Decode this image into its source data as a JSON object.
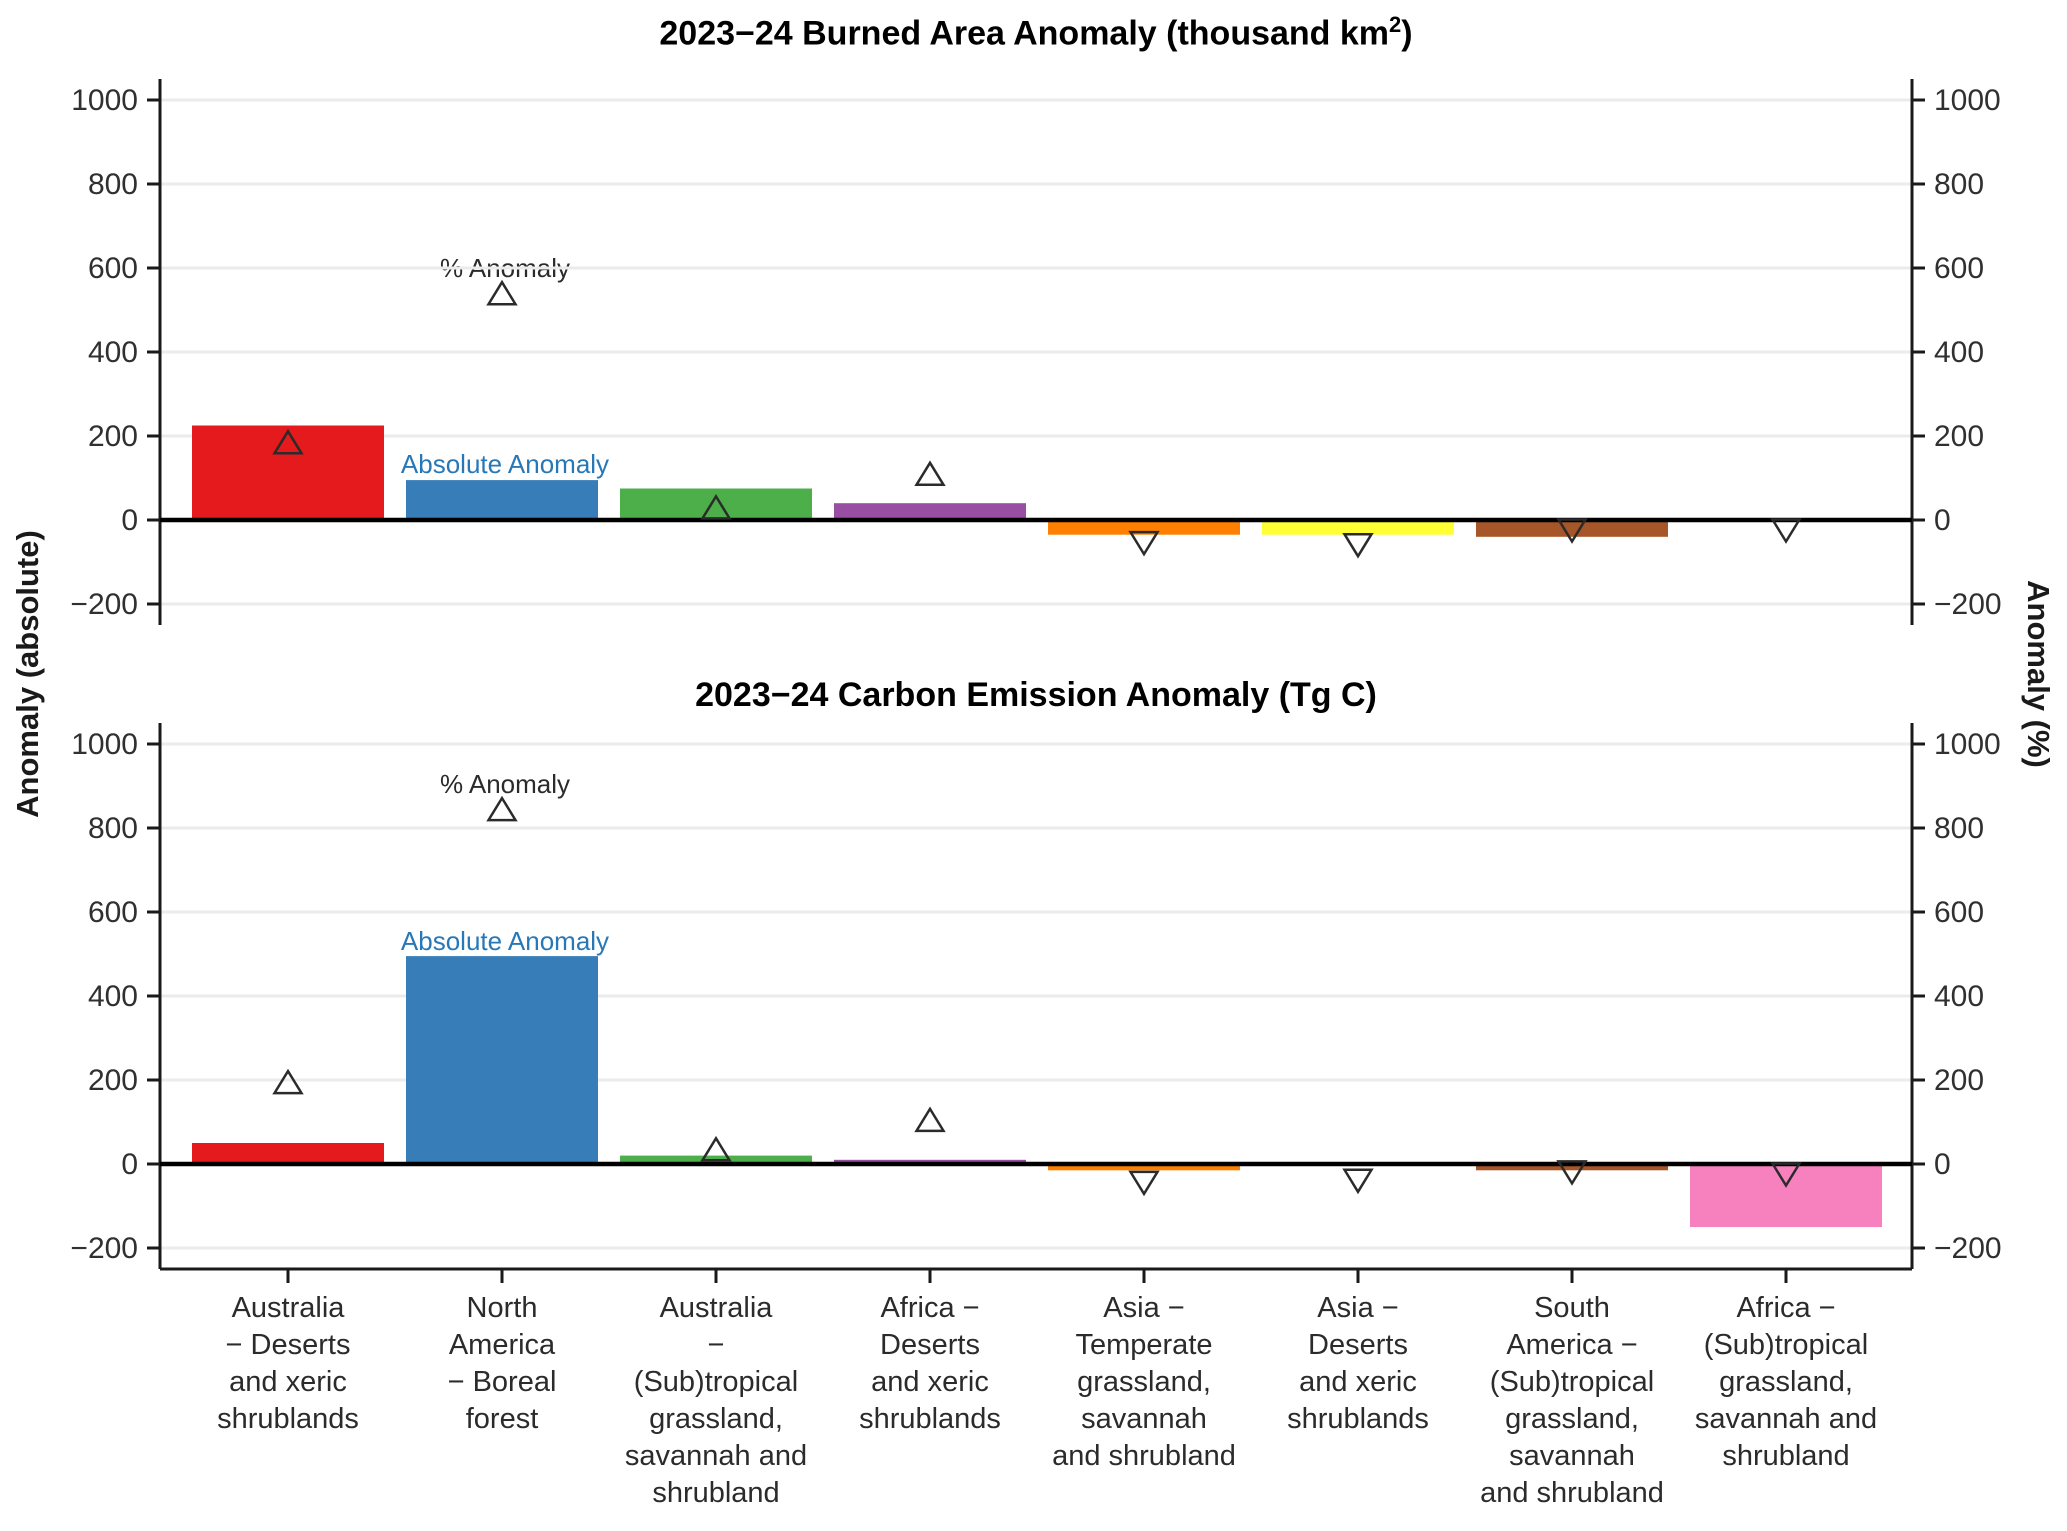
{
  "figure": {
    "left_axis_label": "Anomaly (absolute)",
    "right_axis_label": "Anomaly (%)"
  },
  "annotations": {
    "pct_label": "% Anomaly",
    "abs_label": "Absolute Anomaly",
    "abs_label_color": "#2878B8"
  },
  "category_lines": [
    [
      "Australia",
      "− Deserts",
      "and xeric",
      "shrublands"
    ],
    [
      "North",
      "America",
      "− Boreal",
      "forest"
    ],
    [
      "Australia",
      "−",
      "(Sub)tropical",
      "grassland,",
      "savannah and",
      "shrubland"
    ],
    [
      "Africa −",
      "Deserts",
      "and xeric",
      "shrublands"
    ],
    [
      "Asia −",
      "Temperate",
      "grassland,",
      "savannah",
      "and shrubland"
    ],
    [
      "Asia −",
      "Deserts",
      "and xeric",
      "shrublands"
    ],
    [
      "South",
      "America −",
      "(Sub)tropical",
      "grassland,",
      "savannah",
      "and shrubland"
    ],
    [
      "Africa −",
      "(Sub)tropical",
      "grassland,",
      "savannah and",
      "shrubland"
    ]
  ],
  "chart_data": [
    {
      "type": "bar",
      "title": "2023−24 Burned Area Anomaly (thousand km²)",
      "title_parts": {
        "pre": "2023−24 Burned Area Anomaly (thousand km",
        "sup": "2",
        "post": ")"
      },
      "categories": [
        "Australia − Deserts and xeric shrublands",
        "North America − Boreal forest",
        "Australia − (Sub)tropical grassland, savannah and shrubland",
        "Africa − Deserts and xeric shrublands",
        "Asia − Temperate grassland, savannah and shrubland",
        "Asia − Deserts and xeric shrublands",
        "South America − (Sub)tropical grassland, savannah and shrubland",
        "Africa − (Sub)tropical grassland, savannah and shrubland"
      ],
      "series": [
        {
          "name": "Absolute Anomaly",
          "marker": "bar",
          "values": [
            225,
            95,
            75,
            40,
            -35,
            -35,
            -40,
            -2
          ]
        },
        {
          "name": "% Anomaly",
          "marker": "open-triangle",
          "values": [
            185,
            540,
            30,
            110,
            -55,
            -60,
            -25,
            -25
          ]
        }
      ],
      "bar_colors": [
        "#E41A1C",
        "#377EB8",
        "#4DAF4A",
        "#984EA3",
        "#FF7F00",
        "#FFFF33",
        "#A65628",
        "#F781BF"
      ],
      "left_ylabel": "Anomaly (absolute)",
      "right_ylabel": "Anomaly (%)",
      "ylim": [
        -250,
        1050
      ],
      "yticks": [
        -200,
        0,
        200,
        400,
        600,
        800,
        1000
      ],
      "grid": "horizontal-light",
      "zero_line": true,
      "legend_position": "in-plot-text-annotations"
    },
    {
      "type": "bar",
      "title": "2023−24 Carbon Emission Anomaly (Tg C)",
      "title_parts": {
        "pre": "2023−24 Carbon Emission Anomaly (Tg C)",
        "sup": "",
        "post": ""
      },
      "categories": [
        "Australia − Deserts and xeric shrublands",
        "North America − Boreal forest",
        "Australia − (Sub)tropical grassland, savannah and shrubland",
        "Africa − Deserts and xeric shrublands",
        "Asia − Temperate grassland, savannah and shrubland",
        "Asia − Deserts and xeric shrublands",
        "South America − (Sub)tropical grassland, savannah and shrubland",
        "Africa − (Sub)tropical grassland, savannah and shrubland"
      ],
      "series": [
        {
          "name": "Absolute Anomaly",
          "marker": "bar",
          "values": [
            50,
            495,
            20,
            10,
            -15,
            -2,
            -15,
            -150
          ]
        },
        {
          "name": "% Anomaly",
          "marker": "open-triangle",
          "values": [
            195,
            845,
            35,
            105,
            -45,
            -40,
            -20,
            -25
          ]
        }
      ],
      "bar_colors": [
        "#E41A1C",
        "#377EB8",
        "#4DAF4A",
        "#984EA3",
        "#FF7F00",
        "#FFFF33",
        "#A65628",
        "#F781BF"
      ],
      "left_ylabel": "Anomaly (absolute)",
      "right_ylabel": "Anomaly (%)",
      "ylim": [
        -250,
        1050
      ],
      "yticks": [
        -200,
        0,
        200,
        400,
        600,
        800,
        1000
      ],
      "grid": "horizontal-light",
      "zero_line": true,
      "legend_position": "in-plot-text-annotations"
    }
  ]
}
